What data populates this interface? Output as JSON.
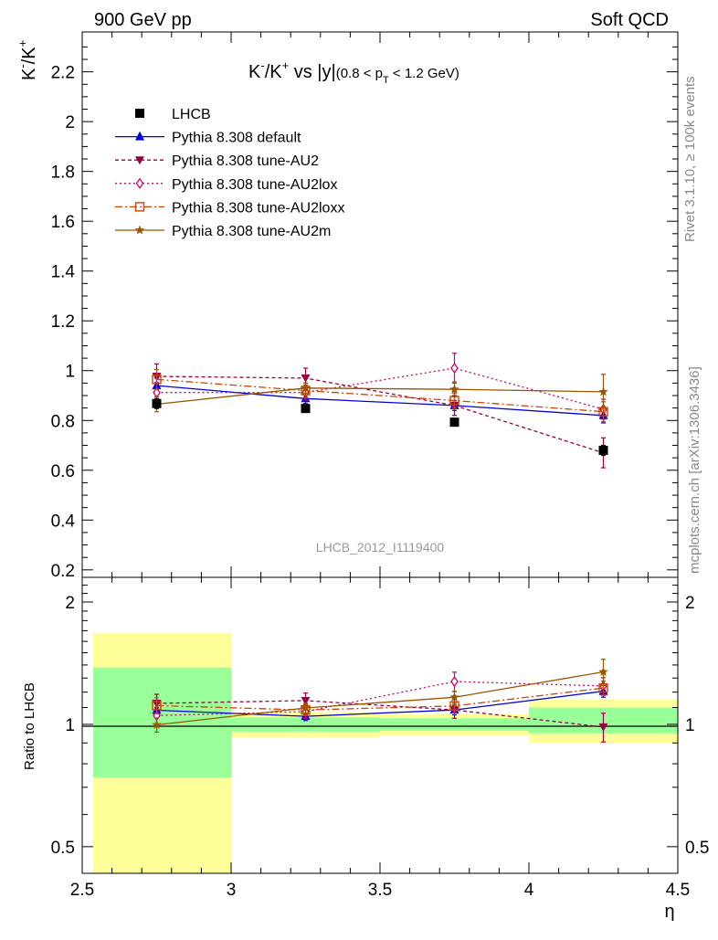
{
  "header": {
    "left": "900 GeV pp",
    "right": "Soft QCD"
  },
  "side_texts": {
    "rivet": "Rivet 3.1.10, ≥ 100k events",
    "mcplots": "mcplots.cern.ch [arXiv:1306.3436]"
  },
  "analysis_ref": "LHCB_2012_I1119400",
  "chart_data": [
    {
      "type": "line",
      "panel": "main",
      "title_parts": {
        "main": "K",
        "sup1": "-",
        "slash": "/K",
        "sup2": "+",
        "vs": " vs |y|",
        "range_a": "(0.8 < p",
        "sub": "T",
        "range_b": " < 1.2 GeV)"
      },
      "ylabel_parts": {
        "a": "K",
        "sup1": "-",
        "b": "/K",
        "sup2": "+"
      },
      "xlim": [
        2.5,
        4.5
      ],
      "ylim": [
        0.17,
        2.36
      ],
      "yticks": [
        "0.2",
        "0.4",
        "0.6",
        "0.8",
        "1",
        "1.2",
        "1.4",
        "1.6",
        "1.8",
        "2",
        "2.2"
      ],
      "x": [
        2.75,
        3.25,
        3.75,
        4.25
      ],
      "legend_position": "top-left",
      "series": [
        {
          "name": "LHCB",
          "color": "#000000",
          "marker": "square",
          "values": [
            0.868,
            0.848,
            0.793,
            0.68
          ],
          "errors": [
            0.02,
            0.015,
            0.015,
            0.02
          ]
        },
        {
          "name": "Pythia 8.308 default",
          "color": "#0000dd",
          "marker": "triangle-up",
          "values": [
            0.94,
            0.888,
            0.86,
            0.82
          ],
          "errors": [
            0.03,
            0.02,
            0.02,
            0.03
          ]
        },
        {
          "name": "Pythia 8.308 tune-AU2",
          "color": "#990044",
          "marker": "triangle-down",
          "values": [
            0.977,
            0.97,
            0.86,
            0.67
          ],
          "errors": [
            0.05,
            0.04,
            0.04,
            0.06
          ]
        },
        {
          "name": "Pythia 8.308 tune-AU2lox",
          "color": "#cc0066",
          "marker": "diamond",
          "values": [
            0.912,
            0.912,
            1.01,
            0.845
          ],
          "errors": [
            0.04,
            0.03,
            0.06,
            0.04
          ]
        },
        {
          "name": "Pythia 8.308 tune-AU2loxx",
          "color": "#cc4400",
          "marker": "open-square",
          "values": [
            0.965,
            0.92,
            0.88,
            0.835
          ],
          "errors": [
            0.04,
            0.03,
            0.03,
            0.04
          ]
        },
        {
          "name": "Pythia 8.308 tune-AU2m",
          "color": "#995500",
          "marker": "star",
          "values": [
            0.865,
            0.93,
            0.925,
            0.915
          ],
          "errors": [
            0.03,
            0.02,
            0.03,
            0.07
          ]
        }
      ]
    },
    {
      "type": "line",
      "panel": "ratio",
      "ylabel": "Ratio to LHCB",
      "xlabel": "η",
      "xlim": [
        2.5,
        4.5
      ],
      "xticks": [
        "2.5",
        "3",
        "3.5",
        "4",
        "4.5"
      ],
      "ylim": [
        0.43,
        2.3
      ],
      "yscale": "log",
      "yticks": [
        "0.5",
        "1",
        "2"
      ],
      "x": [
        2.75,
        3.25,
        3.75,
        4.25
      ],
      "bands": [
        {
          "x0": 2.5,
          "x1": 3.0,
          "inner": [
            0.74,
            1.38
          ],
          "outer": [
            0.43,
            1.68
          ]
        },
        {
          "x0": 3.0,
          "x1": 3.5,
          "inner": [
            0.96,
            1.04
          ],
          "outer": [
            0.93,
            1.07
          ]
        },
        {
          "x0": 3.5,
          "x1": 4.0,
          "inner": [
            0.965,
            1.035
          ],
          "outer": [
            0.94,
            1.06
          ]
        },
        {
          "x0": 4.0,
          "x1": 4.5,
          "inner": [
            0.95,
            1.1
          ],
          "outer": [
            0.9,
            1.15
          ]
        }
      ],
      "series": [
        {
          "name": "Pythia 8.308 default",
          "color": "#0000dd",
          "marker": "triangle-up",
          "values": [
            1.083,
            1.047,
            1.085,
            1.206
          ],
          "errors": [
            0.04,
            0.025,
            0.03,
            0.04
          ]
        },
        {
          "name": "Pythia 8.308 tune-AU2",
          "color": "#990044",
          "marker": "triangle-down",
          "values": [
            1.126,
            1.144,
            1.085,
            0.985
          ],
          "errors": [
            0.06,
            0.05,
            0.05,
            0.08
          ]
        },
        {
          "name": "Pythia 8.308 tune-AU2lox",
          "color": "#cc0066",
          "marker": "diamond",
          "values": [
            1.051,
            1.075,
            1.274,
            1.243
          ],
          "errors": [
            0.05,
            0.04,
            0.07,
            0.06
          ]
        },
        {
          "name": "Pythia 8.308 tune-AU2loxx",
          "color": "#cc4400",
          "marker": "open-square",
          "values": [
            1.112,
            1.085,
            1.11,
            1.228
          ],
          "errors": [
            0.05,
            0.035,
            0.04,
            0.05
          ]
        },
        {
          "name": "Pythia 8.308 tune-AU2m",
          "color": "#995500",
          "marker": "star",
          "values": [
            0.997,
            1.097,
            1.166,
            1.346
          ],
          "errors": [
            0.04,
            0.03,
            0.04,
            0.1
          ]
        }
      ]
    }
  ]
}
